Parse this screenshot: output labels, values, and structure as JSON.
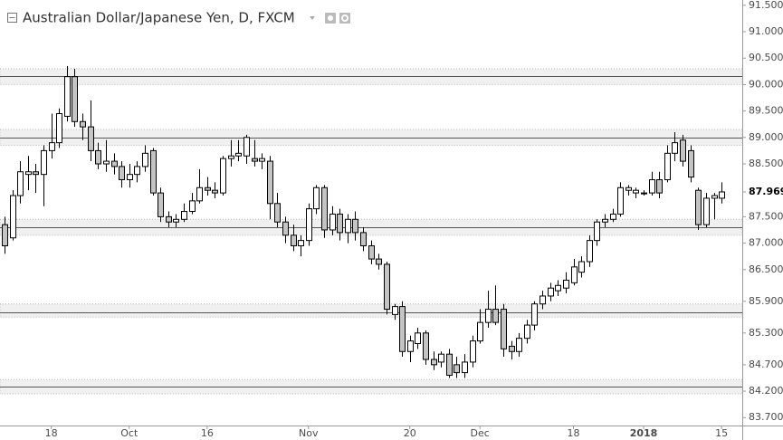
{
  "chart_data": {
    "type": "candlestick",
    "title": "Australian Dollar/Japanese Yen, D, FXCM",
    "categories": [
      null,
      null,
      null,
      null,
      null,
      null,
      "18",
      null,
      null,
      null,
      null,
      null,
      null,
      null,
      null,
      null,
      "Oct",
      null,
      null,
      null,
      null,
      null,
      null,
      null,
      null,
      null,
      "16",
      null,
      null,
      null,
      null,
      null,
      null,
      null,
      null,
      null,
      null,
      null,
      null,
      "Nov",
      null,
      null,
      null,
      null,
      null,
      null,
      null,
      null,
      null,
      null,
      null,
      null,
      "20",
      null,
      null,
      null,
      null,
      null,
      null,
      null,
      null,
      "Dec",
      null,
      null,
      null,
      null,
      null,
      null,
      null,
      null,
      null,
      null,
      null,
      "18",
      null,
      null,
      null,
      null,
      null,
      null,
      null,
      null,
      "2018",
      null,
      null,
      null,
      null,
      null,
      null,
      null,
      null,
      null,
      "15"
    ],
    "open": [
      87.35,
      87.1,
      87.9,
      88.3,
      88.35,
      88.3,
      88.75,
      88.9,
      89.4,
      90.15,
      89.3,
      89.2,
      88.75,
      88.5,
      88.55,
      88.45,
      88.2,
      88.3,
      88.45,
      88.75,
      87.95,
      87.5,
      87.4,
      87.45,
      87.6,
      87.8,
      88.05,
      88.0,
      87.95,
      88.6,
      88.65,
      88.65,
      88.6,
      88.55,
      88.55,
      87.75,
      87.4,
      87.15,
      86.95,
      87.05,
      87.65,
      88.05,
      87.25,
      87.55,
      87.2,
      87.45,
      87.2,
      86.95,
      86.7,
      86.6,
      85.65,
      85.8,
      84.95,
      85.1,
      85.3,
      84.8,
      84.75,
      84.9,
      84.7,
      84.55,
      84.75,
      85.15,
      85.5,
      85.75,
      85.75,
      85.05,
      84.95,
      85.2,
      85.45,
      85.85,
      86.0,
      86.1,
      86.15,
      86.25,
      86.45,
      86.65,
      87.05,
      87.4,
      87.45,
      87.55,
      88.0,
      87.95,
      87.95,
      87.95,
      88.2,
      88.2,
      88.7,
      88.95,
      88.75,
      88.0,
      87.35,
      87.85,
      87.85
    ],
    "high": [
      87.5,
      88.0,
      88.55,
      88.65,
      88.5,
      88.85,
      89.45,
      89.55,
      90.35,
      90.3,
      89.45,
      89.7,
      88.9,
      88.95,
      88.7,
      88.55,
      88.5,
      88.55,
      88.85,
      88.8,
      88.05,
      87.6,
      87.55,
      87.75,
      87.95,
      88.4,
      88.25,
      88.15,
      88.65,
      88.95,
      88.95,
      89.05,
      88.95,
      88.7,
      88.65,
      87.95,
      87.5,
      87.35,
      87.15,
      87.75,
      88.1,
      88.1,
      87.7,
      87.65,
      87.55,
      87.6,
      87.3,
      87.05,
      86.8,
      86.65,
      85.85,
      85.9,
      85.25,
      85.4,
      85.35,
      84.95,
      84.95,
      85.0,
      84.85,
      84.9,
      85.25,
      85.75,
      86.1,
      86.2,
      85.85,
      85.15,
      85.3,
      85.55,
      85.9,
      86.1,
      86.25,
      86.3,
      86.45,
      86.7,
      86.75,
      87.15,
      87.45,
      87.55,
      87.65,
      88.15,
      88.1,
      88.05,
      88.0,
      88.35,
      88.35,
      88.85,
      89.1,
      89.05,
      88.85,
      88.05,
      87.95,
      87.95,
      88.15
    ],
    "low": [
      86.8,
      87.05,
      87.75,
      88.0,
      87.95,
      87.7,
      88.6,
      88.8,
      89.3,
      89.2,
      88.95,
      88.55,
      88.4,
      88.35,
      88.3,
      88.05,
      88.05,
      88.15,
      88.35,
      87.9,
      87.4,
      87.3,
      87.3,
      87.4,
      87.55,
      87.75,
      87.9,
      87.85,
      87.9,
      88.45,
      88.55,
      88.5,
      88.45,
      88.4,
      87.45,
      87.3,
      87.0,
      86.85,
      86.75,
      86.95,
      87.55,
      87.1,
      87.15,
      87.05,
      87.0,
      87.05,
      86.85,
      86.6,
      86.5,
      85.65,
      85.55,
      84.85,
      84.75,
      85.0,
      84.7,
      84.6,
      84.65,
      84.45,
      84.45,
      84.45,
      84.65,
      85.1,
      85.4,
      85.45,
      84.85,
      84.8,
      84.85,
      85.1,
      85.35,
      85.75,
      85.9,
      86.0,
      86.05,
      86.2,
      86.35,
      86.55,
      86.95,
      87.3,
      87.4,
      87.5,
      87.9,
      87.85,
      87.9,
      87.9,
      87.85,
      88.15,
      88.55,
      88.45,
      88.15,
      87.25,
      87.3,
      87.45,
      87.75
    ],
    "close": [
      86.95,
      87.9,
      88.35,
      88.35,
      88.3,
      88.75,
      88.9,
      89.45,
      90.15,
      89.3,
      89.2,
      88.75,
      88.5,
      88.55,
      88.45,
      88.2,
      88.3,
      88.45,
      88.7,
      87.95,
      87.5,
      87.4,
      87.45,
      87.6,
      87.8,
      88.05,
      88.0,
      87.95,
      88.6,
      88.65,
      88.7,
      89.0,
      88.55,
      88.6,
      87.75,
      87.4,
      87.15,
      86.95,
      87.05,
      87.65,
      88.05,
      87.25,
      87.55,
      87.2,
      87.45,
      87.2,
      86.95,
      86.7,
      86.6,
      85.75,
      85.8,
      84.95,
      85.15,
      85.3,
      84.8,
      84.7,
      84.9,
      84.5,
      84.55,
      84.75,
      85.15,
      85.5,
      85.75,
      85.5,
      85.0,
      84.95,
      85.2,
      85.45,
      85.85,
      86.0,
      86.15,
      86.2,
      86.3,
      86.55,
      86.65,
      87.05,
      87.4,
      87.45,
      87.55,
      88.05,
      88.05,
      88.0,
      87.95,
      88.2,
      87.95,
      88.7,
      88.9,
      88.55,
      88.25,
      87.35,
      87.85,
      87.9,
      87.969
    ],
    "up_color": "#ffffff",
    "down_color": "#c4c4c4",
    "outline_color": "#000000",
    "zones": [
      {
        "level": 90.16,
        "low": 90.0,
        "high": 90.3
      },
      {
        "level": 89.0,
        "low": 88.85,
        "high": 89.15
      },
      {
        "level": 87.3,
        "low": 87.15,
        "high": 87.45
      },
      {
        "level": 85.69,
        "low": 85.6,
        "high": 85.85
      },
      {
        "level": 84.28,
        "low": 84.15,
        "high": 84.42
      }
    ],
    "ylim": [
      83.55,
      91.6
    ],
    "yticks": [
      {
        "value": 91.5,
        "label": "91.500"
      },
      {
        "value": 91.0,
        "label": "91.000"
      },
      {
        "value": 90.5,
        "label": "90.500"
      },
      {
        "value": 90.0,
        "label": "90.000"
      },
      {
        "value": 89.5,
        "label": "89.500"
      },
      {
        "value": 89.0,
        "label": "89.000"
      },
      {
        "value": 88.5,
        "label": "88.500"
      },
      87.969,
      {
        "value": 87.5,
        "label": "87.500"
      },
      {
        "value": 87.0,
        "label": "87.000"
      },
      {
        "value": 86.5,
        "label": "86.500"
      },
      {
        "value": 85.9,
        "label": "85.900"
      },
      {
        "value": 85.3,
        "label": "85.300"
      },
      {
        "value": 84.7,
        "label": "84.700"
      },
      {
        "value": 84.2,
        "label": "84.200"
      },
      {
        "value": 83.7,
        "label": "83.700"
      }
    ],
    "grid": false
  }
}
